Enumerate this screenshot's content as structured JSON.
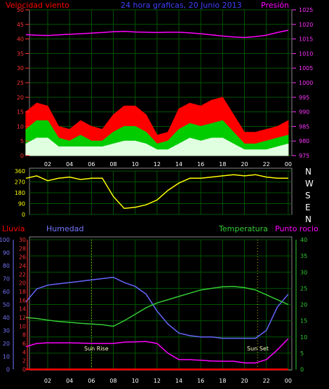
{
  "header": {
    "wind_label": "Velocidad viento",
    "title": "24 hora graficas, 20 Junio 2013",
    "pressure_label": "Presión"
  },
  "lower_header": {
    "rain_label": "Lluvia",
    "humidity_label": "Humedad",
    "temp_label": "Temperatura",
    "dew_label": "Punto rocio"
  },
  "annotations": {
    "sunrise": "Sun Rise",
    "sunset": "Sun Set"
  },
  "compass": [
    "N",
    "W",
    "S",
    "E",
    "N"
  ],
  "colors": {
    "wind_gust": "#ff0000",
    "wind_avg": "#00cc00",
    "wind_speed": "#e0ffe0",
    "pressure": "#ff00ff",
    "direction": "#ffff00",
    "rain": "#ff0000",
    "humidity": "#6666ff",
    "temperature": "#33cc33",
    "dew": "#ff00ff",
    "grid": "#005500",
    "axis": "#ffffff"
  },
  "chart_data": [
    {
      "type": "area",
      "title": "24 hora graficas, 20 Junio 2013",
      "x_ticks": [
        "02",
        "04",
        "06",
        "08",
        "10",
        "12",
        "14",
        "16",
        "18",
        "20",
        "22",
        "00"
      ],
      "y_left_label": "Velocidad viento",
      "y_left_ticks": [
        "0",
        "5",
        "10",
        "15",
        "20",
        "25",
        "30",
        "35",
        "40",
        "45",
        "50"
      ],
      "ylim_left": [
        0,
        50
      ],
      "y_right_label": "Presión",
      "y_right_ticks": [
        "975",
        "980",
        "985",
        "990",
        "995",
        "1000",
        "1005",
        "1010",
        "1015",
        "1020",
        "1025"
      ],
      "ylim_right": [
        975,
        1025
      ],
      "x": [
        0,
        1,
        2,
        3,
        4,
        5,
        6,
        7,
        8,
        9,
        10,
        11,
        12,
        13,
        14,
        15,
        16,
        17,
        18,
        19,
        20,
        21,
        22,
        23,
        24
      ],
      "series": [
        {
          "name": "gust",
          "values": [
            15,
            18,
            17,
            10,
            9,
            12,
            10,
            9,
            14,
            17,
            17,
            14,
            7,
            8,
            16,
            18,
            17,
            19,
            20,
            14,
            8,
            8,
            9,
            10,
            12
          ]
        },
        {
          "name": "avg",
          "values": [
            9,
            12,
            12,
            6,
            5,
            7,
            5,
            5,
            8,
            10,
            10,
            8,
            4,
            5,
            9,
            11,
            10,
            11,
            12,
            8,
            4,
            4,
            5,
            6,
            7
          ]
        },
        {
          "name": "speed",
          "values": [
            4,
            6,
            6,
            3,
            3,
            3,
            3,
            3,
            4,
            5,
            5,
            4,
            2,
            2,
            4,
            6,
            5,
            6,
            6,
            4,
            2,
            2,
            2,
            3,
            4
          ]
        },
        {
          "name": "pressure",
          "values": [
            1016.5,
            1016.3,
            1016.2,
            1016.4,
            1016.6,
            1016.8,
            1017,
            1017.2,
            1017.5,
            1017.6,
            1017.4,
            1017.3,
            1017.2,
            1017.3,
            1017.3,
            1017.1,
            1016.8,
            1016.4,
            1016,
            1015.7,
            1015.5,
            1015.8,
            1016.3,
            1017.2,
            1018
          ]
        }
      ]
    },
    {
      "type": "line",
      "title": "",
      "y_ticks": [
        "0",
        "90",
        "180",
        "270",
        "360"
      ],
      "ylim": [
        0,
        360
      ],
      "x": [
        0,
        1,
        2,
        3,
        4,
        5,
        6,
        7,
        8,
        9,
        10,
        11,
        12,
        13,
        14,
        15,
        16,
        17,
        18,
        19,
        20,
        21,
        22,
        23,
        24
      ],
      "series": [
        {
          "name": "direction",
          "values": [
            300,
            320,
            280,
            300,
            310,
            290,
            300,
            300,
            150,
            50,
            60,
            80,
            120,
            200,
            260,
            300,
            300,
            310,
            320,
            330,
            320,
            330,
            310,
            300,
            300
          ]
        }
      ]
    },
    {
      "type": "line",
      "title": "",
      "y_hum_label": "Humedad",
      "y_hum_ticks": [
        "0",
        "10",
        "20",
        "30",
        "40",
        "50",
        "60",
        "70",
        "80",
        "90",
        "100"
      ],
      "ylim_hum": [
        0,
        100
      ],
      "y_rain_label": "Lluvia",
      "y_rain_ticks": [
        "0",
        "2",
        "4",
        "6",
        "8",
        "10",
        "12",
        "14",
        "16",
        "18",
        "20",
        "22",
        "24",
        "26",
        "28",
        "30"
      ],
      "ylim_rain": [
        0,
        30
      ],
      "y_temp_label": "Temperatura",
      "y_temp_ticks": [
        "0",
        "5",
        "10",
        "15",
        "20",
        "25",
        "30",
        "35",
        "40"
      ],
      "ylim_temp": [
        0,
        40
      ],
      "x": [
        0,
        1,
        2,
        3,
        4,
        5,
        6,
        7,
        8,
        9,
        10,
        11,
        12,
        13,
        14,
        15,
        16,
        17,
        18,
        19,
        20,
        21,
        22,
        23,
        24
      ],
      "series": [
        {
          "name": "humedad",
          "values": [
            52,
            62,
            65,
            66,
            67,
            68,
            69,
            70,
            71,
            67,
            64,
            58,
            45,
            35,
            28,
            26,
            25,
            25,
            24,
            24,
            24,
            24,
            30,
            48,
            58
          ]
        },
        {
          "name": "temperatura",
          "values": [
            16,
            15.7,
            15.2,
            14.8,
            14.5,
            14.2,
            14,
            13.8,
            13.3,
            15,
            17,
            19,
            20.5,
            21.5,
            22.5,
            23.5,
            24.5,
            25,
            25.5,
            25.6,
            25.2,
            24.5,
            23,
            21.5,
            20
          ]
        },
        {
          "name": "punto rocio",
          "values": [
            7,
            8,
            8.2,
            8.2,
            8.2,
            8.1,
            8,
            8,
            8,
            8.4,
            8.5,
            8.6,
            8,
            5,
            3,
            3,
            2.8,
            2.6,
            2.5,
            2.5,
            2,
            2,
            3,
            6,
            9.5
          ]
        },
        {
          "name": "lluvia",
          "values": [
            0,
            0,
            0,
            0,
            0,
            0,
            0,
            0,
            0,
            0,
            0,
            0,
            0,
            0,
            0,
            0,
            0,
            0,
            0,
            0,
            0,
            0,
            0,
            0,
            0
          ]
        }
      ]
    }
  ]
}
